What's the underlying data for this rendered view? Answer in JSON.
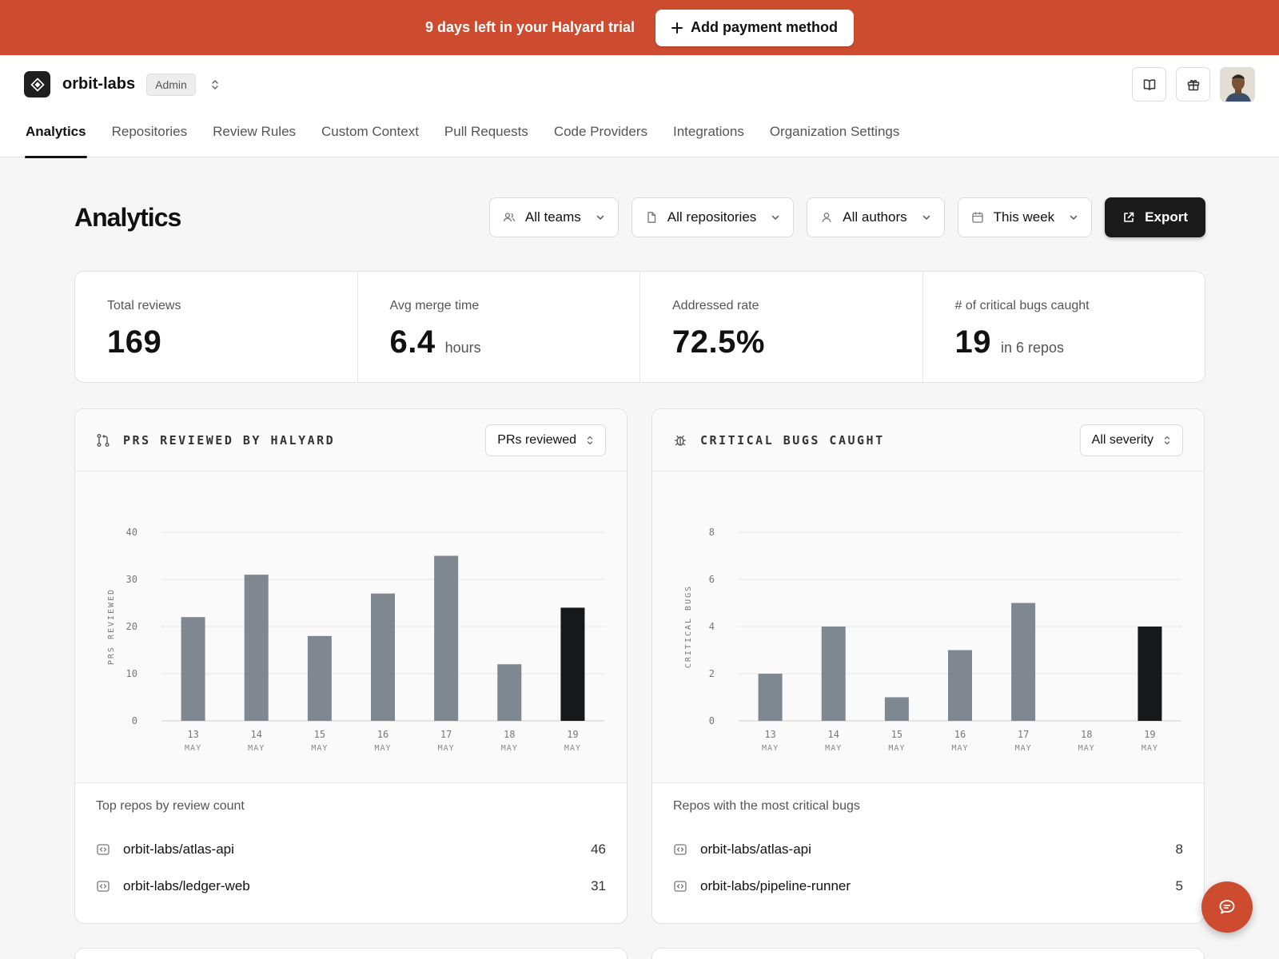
{
  "banner": {
    "text": "9 days left in your Halyard trial",
    "button_label": "Add payment method",
    "color": "#cd4b2e"
  },
  "header": {
    "org_name": "orbit-labs",
    "role_badge": "Admin",
    "icons": [
      "book-icon",
      "gift-icon",
      "avatar"
    ]
  },
  "nav": {
    "tabs": [
      {
        "label": "Analytics",
        "active": true
      },
      {
        "label": "Repositories"
      },
      {
        "label": "Review Rules"
      },
      {
        "label": "Custom Context"
      },
      {
        "label": "Pull Requests"
      },
      {
        "label": "Code Providers"
      },
      {
        "label": "Integrations"
      },
      {
        "label": "Organization Settings"
      }
    ]
  },
  "page": {
    "title": "Analytics",
    "filters": {
      "teams": "All teams",
      "repositories": "All repositories",
      "authors": "All authors",
      "period": "This week"
    },
    "export_label": "Export"
  },
  "stats": [
    {
      "label": "Total reviews",
      "value": "169",
      "unit": ""
    },
    {
      "label": "Avg merge time",
      "value": "6.4",
      "unit": "hours"
    },
    {
      "label": "Addressed rate",
      "value": "72.5%",
      "unit": ""
    },
    {
      "label": "# of critical bugs caught",
      "value": "19",
      "unit": "in 6 repos"
    }
  ],
  "cards": {
    "prs": {
      "title": "PRS REVIEWED BY HALYARD",
      "select": "PRs reviewed",
      "footer_title": "Top repos by review count",
      "repos": [
        {
          "name": "orbit-labs/atlas-api",
          "count": "46"
        },
        {
          "name": "orbit-labs/ledger-web",
          "count": "31"
        }
      ]
    },
    "bugs": {
      "title": "CRITICAL BUGS CAUGHT",
      "select": "All severity",
      "footer_title": "Repos with the most critical bugs",
      "repos": [
        {
          "name": "orbit-labs/atlas-api",
          "count": "8"
        },
        {
          "name": "orbit-labs/pipeline-runner",
          "count": "5"
        }
      ]
    }
  },
  "chart_data": [
    {
      "type": "bar",
      "ylabel": "PRS REVIEWED",
      "categories": [
        "13 MAY",
        "14 MAY",
        "15 MAY",
        "16 MAY",
        "17 MAY",
        "18 MAY",
        "19 MAY"
      ],
      "values": [
        22,
        31,
        18,
        27,
        35,
        12,
        24
      ],
      "ylim": [
        0,
        40
      ],
      "yticks": [
        0,
        10,
        20,
        30,
        40
      ],
      "highlight_index": 6,
      "bar_color": "#7f8790",
      "highlight_color": "#16181a",
      "grid": true
    },
    {
      "type": "bar",
      "ylabel": "CRITICAL BUGS",
      "categories": [
        "13 MAY",
        "14 MAY",
        "15 MAY",
        "16 MAY",
        "17 MAY",
        "18 MAY",
        "19 MAY"
      ],
      "values": [
        2,
        4,
        1,
        3,
        5,
        0,
        4
      ],
      "ylim": [
        0,
        8
      ],
      "yticks": [
        0,
        2,
        4,
        6,
        8
      ],
      "highlight_index": 6,
      "bar_color": "#7f8790",
      "highlight_color": "#16181a",
      "grid": true
    }
  ]
}
